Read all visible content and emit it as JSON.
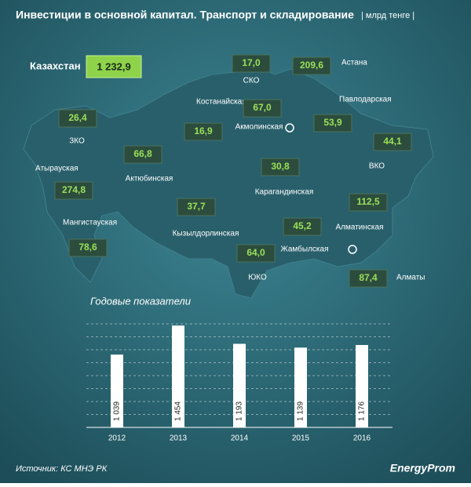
{
  "title": "Инвестиции в основной капитал. Транспорт и складирование",
  "unit": "| млрд тенге |",
  "total": {
    "label": "Казахстан",
    "value": "1 232,9"
  },
  "regions": [
    {
      "name": "СКО",
      "value": "17,0"
    },
    {
      "name": "Астана",
      "value": "209,6"
    },
    {
      "name": "Костанайская",
      "value": "16,9"
    },
    {
      "name": "Акмолинская",
      "value": "67,0"
    },
    {
      "name": "Павлодарская",
      "value": "53,9"
    },
    {
      "name": "ЗКО",
      "value": "26,4"
    },
    {
      "name": "ВКО",
      "value": "44,1"
    },
    {
      "name": "Актюбинская",
      "value": "66,8"
    },
    {
      "name": "Атырауская",
      "value": "274,8"
    },
    {
      "name": "Карагандинская",
      "value": "30,8"
    },
    {
      "name": "Алматинская",
      "value": "112,5"
    },
    {
      "name": "Мангистауская",
      "value": "78,6"
    },
    {
      "name": "Кызылдорлинская",
      "value": "37,7"
    },
    {
      "name": "Жамбылская",
      "value": "45,2"
    },
    {
      "name": "ЮКО",
      "value": "64,0"
    },
    {
      "name": "Алматы",
      "value": "87,4"
    }
  ],
  "chart_data": {
    "type": "bar",
    "title": "Годовые показатели",
    "categories": [
      "2012",
      "2013",
      "2014",
      "2015",
      "2016"
    ],
    "values": [
      1039,
      1454,
      1193,
      1139,
      1176
    ],
    "value_labels": [
      "1 039",
      "1 454",
      "1 193",
      "1 139",
      "1 176"
    ],
    "color": "#ffffff",
    "ylim": [
      0,
      1500
    ]
  },
  "source": "Источник: КС МНЭ РК",
  "brand": "EnergyProm"
}
